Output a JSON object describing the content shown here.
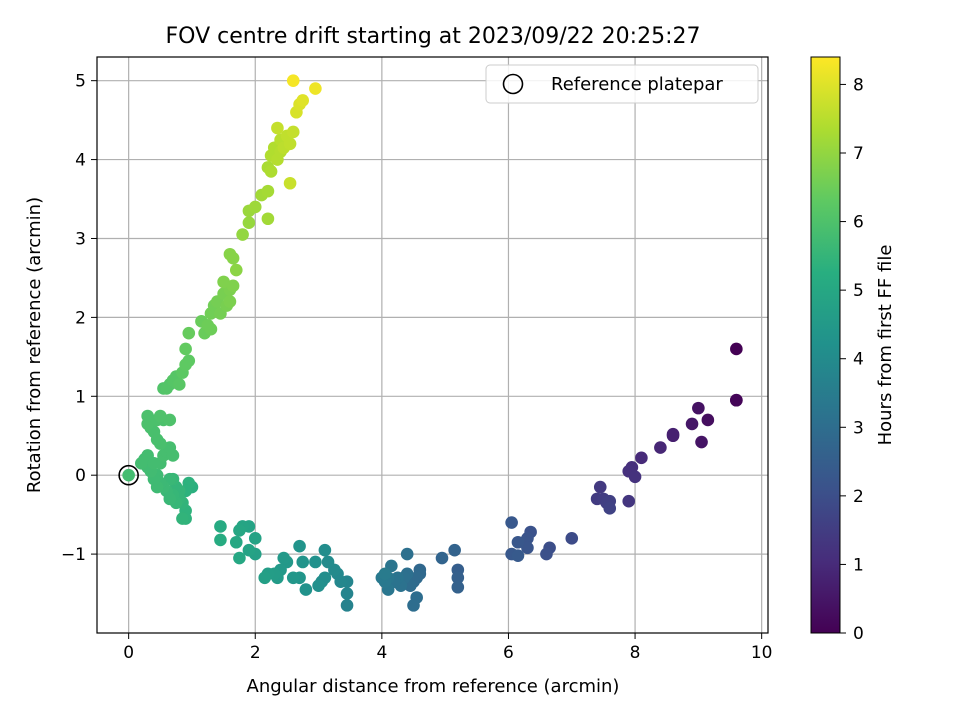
{
  "chart_data": {
    "type": "scatter",
    "title": "FOV centre drift starting at 2023/09/22 20:25:27",
    "xlabel": "Angular distance from reference (arcmin)",
    "ylabel": "Rotation from reference (arcmin)",
    "xlim": [
      -0.5,
      10.1
    ],
    "ylim": [
      -2.0,
      5.3
    ],
    "xticks": [
      0,
      2,
      4,
      6,
      8,
      10
    ],
    "yticks": [
      -1,
      0,
      1,
      2,
      3,
      4,
      5
    ],
    "grid": true,
    "legend": {
      "position": "top-right",
      "entries": [
        "Reference platepar"
      ]
    },
    "colorbar": {
      "label": "Hours from first FF file",
      "range": [
        0,
        8.4
      ],
      "ticks": [
        0,
        1,
        2,
        3,
        4,
        5,
        6,
        7,
        8
      ],
      "colormap": "viridis"
    },
    "reference_point": {
      "x": 0,
      "y": 0
    },
    "points": [
      {
        "x": 9.6,
        "y": 1.6,
        "c": 0.0
      },
      {
        "x": 9.6,
        "y": 0.95,
        "c": 0.05
      },
      {
        "x": 9.6,
        "y": 0.95,
        "c": 0.1
      },
      {
        "x": 9.15,
        "y": 0.7,
        "c": 0.3
      },
      {
        "x": 9.0,
        "y": 0.85,
        "c": 0.4
      },
      {
        "x": 8.9,
        "y": 0.65,
        "c": 0.5
      },
      {
        "x": 9.05,
        "y": 0.42,
        "c": 0.45
      },
      {
        "x": 8.6,
        "y": 0.5,
        "c": 0.7
      },
      {
        "x": 8.6,
        "y": 0.52,
        "c": 0.75
      },
      {
        "x": 8.4,
        "y": 0.35,
        "c": 0.9
      },
      {
        "x": 8.1,
        "y": 0.22,
        "c": 1.0
      },
      {
        "x": 7.95,
        "y": 0.1,
        "c": 1.1
      },
      {
        "x": 7.9,
        "y": 0.05,
        "c": 1.15
      },
      {
        "x": 8.0,
        "y": -0.02,
        "c": 1.2
      },
      {
        "x": 7.9,
        "y": -0.33,
        "c": 1.3
      },
      {
        "x": 7.45,
        "y": -0.15,
        "c": 1.4
      },
      {
        "x": 7.4,
        "y": -0.3,
        "c": 1.45
      },
      {
        "x": 7.5,
        "y": -0.3,
        "c": 1.5
      },
      {
        "x": 7.55,
        "y": -0.35,
        "c": 1.55
      },
      {
        "x": 7.6,
        "y": -0.33,
        "c": 1.6
      },
      {
        "x": 7.6,
        "y": -0.42,
        "c": 1.65
      },
      {
        "x": 7.0,
        "y": -0.8,
        "c": 1.9
      },
      {
        "x": 6.65,
        "y": -0.92,
        "c": 2.0
      },
      {
        "x": 6.6,
        "y": -1.0,
        "c": 2.05
      },
      {
        "x": 6.35,
        "y": -0.72,
        "c": 2.1
      },
      {
        "x": 6.3,
        "y": -0.8,
        "c": 2.15
      },
      {
        "x": 6.25,
        "y": -0.85,
        "c": 2.2
      },
      {
        "x": 6.3,
        "y": -0.92,
        "c": 2.2
      },
      {
        "x": 6.15,
        "y": -0.85,
        "c": 2.25
      },
      {
        "x": 6.05,
        "y": -0.6,
        "c": 2.3
      },
      {
        "x": 6.05,
        "y": -1.0,
        "c": 2.3
      },
      {
        "x": 6.15,
        "y": -1.02,
        "c": 2.35
      },
      {
        "x": 5.2,
        "y": -1.2,
        "c": 2.5
      },
      {
        "x": 5.2,
        "y": -1.3,
        "c": 2.55
      },
      {
        "x": 5.2,
        "y": -1.42,
        "c": 2.6
      },
      {
        "x": 5.15,
        "y": -0.95,
        "c": 2.65
      },
      {
        "x": 4.95,
        "y": -1.05,
        "c": 2.7
      },
      {
        "x": 4.6,
        "y": -1.2,
        "c": 2.8
      },
      {
        "x": 4.6,
        "y": -1.25,
        "c": 2.85
      },
      {
        "x": 4.55,
        "y": -1.3,
        "c": 2.9
      },
      {
        "x": 4.5,
        "y": -1.35,
        "c": 2.9
      },
      {
        "x": 4.45,
        "y": -1.4,
        "c": 2.95
      },
      {
        "x": 4.55,
        "y": -1.55,
        "c": 3.0
      },
      {
        "x": 4.5,
        "y": -1.65,
        "c": 3.0
      },
      {
        "x": 4.4,
        "y": -1.25,
        "c": 3.05
      },
      {
        "x": 4.4,
        "y": -1.0,
        "c": 3.1
      },
      {
        "x": 4.35,
        "y": -1.3,
        "c": 3.1
      },
      {
        "x": 4.3,
        "y": -1.4,
        "c": 3.15
      },
      {
        "x": 4.25,
        "y": -1.3,
        "c": 3.2
      },
      {
        "x": 4.2,
        "y": -1.35,
        "c": 3.2
      },
      {
        "x": 4.15,
        "y": -1.15,
        "c": 3.25
      },
      {
        "x": 4.1,
        "y": -1.3,
        "c": 3.3
      },
      {
        "x": 4.1,
        "y": -1.45,
        "c": 3.3
      },
      {
        "x": 4.05,
        "y": -1.35,
        "c": 3.35
      },
      {
        "x": 4.0,
        "y": -1.3,
        "c": 3.4
      },
      {
        "x": 4.05,
        "y": -1.25,
        "c": 3.45
      },
      {
        "x": 3.45,
        "y": -1.65,
        "c": 3.7
      },
      {
        "x": 3.45,
        "y": -1.5,
        "c": 3.75
      },
      {
        "x": 3.45,
        "y": -1.35,
        "c": 3.8
      },
      {
        "x": 3.35,
        "y": -1.35,
        "c": 3.85
      },
      {
        "x": 3.3,
        "y": -1.25,
        "c": 3.9
      },
      {
        "x": 3.25,
        "y": -1.2,
        "c": 3.95
      },
      {
        "x": 3.15,
        "y": -1.1,
        "c": 4.0
      },
      {
        "x": 3.1,
        "y": -0.95,
        "c": 4.05
      },
      {
        "x": 3.1,
        "y": -1.3,
        "c": 4.1
      },
      {
        "x": 3.05,
        "y": -1.35,
        "c": 4.1
      },
      {
        "x": 3.0,
        "y": -1.4,
        "c": 4.15
      },
      {
        "x": 2.95,
        "y": -1.1,
        "c": 4.2
      },
      {
        "x": 2.8,
        "y": -1.45,
        "c": 4.25
      },
      {
        "x": 2.75,
        "y": -1.1,
        "c": 4.3
      },
      {
        "x": 2.7,
        "y": -0.9,
        "c": 4.3
      },
      {
        "x": 2.7,
        "y": -1.3,
        "c": 4.35
      },
      {
        "x": 2.6,
        "y": -1.3,
        "c": 4.4
      },
      {
        "x": 2.5,
        "y": -1.1,
        "c": 4.45
      },
      {
        "x": 2.45,
        "y": -1.05,
        "c": 4.5
      },
      {
        "x": 2.4,
        "y": -1.2,
        "c": 4.5
      },
      {
        "x": 2.35,
        "y": -1.3,
        "c": 4.55
      },
      {
        "x": 2.3,
        "y": -1.25,
        "c": 4.6
      },
      {
        "x": 2.2,
        "y": -1.25,
        "c": 4.65
      },
      {
        "x": 2.15,
        "y": -1.3,
        "c": 4.7
      },
      {
        "x": 2.0,
        "y": -1.0,
        "c": 4.75
      },
      {
        "x": 2.0,
        "y": -0.8,
        "c": 4.8
      },
      {
        "x": 1.9,
        "y": -0.95,
        "c": 4.85
      },
      {
        "x": 1.9,
        "y": -0.65,
        "c": 4.85
      },
      {
        "x": 1.8,
        "y": -0.65,
        "c": 4.9
      },
      {
        "x": 1.75,
        "y": -0.7,
        "c": 4.95
      },
      {
        "x": 1.7,
        "y": -0.85,
        "c": 5.0
      },
      {
        "x": 1.75,
        "y": -1.05,
        "c": 5.0
      },
      {
        "x": 1.45,
        "y": -0.65,
        "c": 5.1
      },
      {
        "x": 1.45,
        "y": -0.82,
        "c": 5.15
      },
      {
        "x": 1.0,
        "y": -0.15,
        "c": 5.3
      },
      {
        "x": 0.95,
        "y": -0.1,
        "c": 5.35
      },
      {
        "x": 0.9,
        "y": -0.2,
        "c": 5.35
      },
      {
        "x": 0.9,
        "y": -0.45,
        "c": 5.4
      },
      {
        "x": 0.9,
        "y": -0.55,
        "c": 5.4
      },
      {
        "x": 0.85,
        "y": -0.55,
        "c": 5.45
      },
      {
        "x": 0.85,
        "y": -0.35,
        "c": 5.45
      },
      {
        "x": 0.8,
        "y": -0.3,
        "c": 5.5
      },
      {
        "x": 0.8,
        "y": -0.2,
        "c": 5.5
      },
      {
        "x": 0.75,
        "y": -0.15,
        "c": 5.5
      },
      {
        "x": 0.75,
        "y": -0.35,
        "c": 5.55
      },
      {
        "x": 0.7,
        "y": -0.25,
        "c": 5.55
      },
      {
        "x": 0.7,
        "y": -0.05,
        "c": 5.55
      },
      {
        "x": 0.65,
        "y": -0.3,
        "c": 5.6
      },
      {
        "x": 0.65,
        "y": -0.05,
        "c": 5.6
      },
      {
        "x": 0.6,
        "y": -0.2,
        "c": 5.6
      },
      {
        "x": 0.55,
        "y": -0.15,
        "c": 5.65
      },
      {
        "x": 0.5,
        "y": -0.1,
        "c": 5.65
      },
      {
        "x": 0.45,
        "y": -0.15,
        "c": 5.7
      },
      {
        "x": 0.45,
        "y": 0.0,
        "c": 5.7
      },
      {
        "x": 0.4,
        "y": -0.05,
        "c": 5.7
      },
      {
        "x": 0.35,
        "y": 0.05,
        "c": 5.75
      },
      {
        "x": 0.3,
        "y": 0.1,
        "c": 5.75
      },
      {
        "x": 0.25,
        "y": 0.2,
        "c": 5.75
      },
      {
        "x": 0.3,
        "y": 0.25,
        "c": 5.8
      },
      {
        "x": 0.2,
        "y": 0.15,
        "c": 5.8
      },
      {
        "x": 0.4,
        "y": 0.15,
        "c": 5.8
      },
      {
        "x": 0.5,
        "y": 0.15,
        "c": 5.8
      },
      {
        "x": 0.55,
        "y": 0.25,
        "c": 5.85
      },
      {
        "x": 0.6,
        "y": 0.3,
        "c": 5.85
      },
      {
        "x": 0.7,
        "y": 0.25,
        "c": 5.85
      },
      {
        "x": 0.65,
        "y": 0.35,
        "c": 5.85
      },
      {
        "x": 0.5,
        "y": 0.4,
        "c": 5.9
      },
      {
        "x": 0.45,
        "y": 0.45,
        "c": 5.9
      },
      {
        "x": 0.4,
        "y": 0.55,
        "c": 5.9
      },
      {
        "x": 0.35,
        "y": 0.6,
        "c": 5.9
      },
      {
        "x": 0.3,
        "y": 0.65,
        "c": 5.95
      },
      {
        "x": 0.3,
        "y": 0.75,
        "c": 5.95
      },
      {
        "x": 0.45,
        "y": 0.7,
        "c": 5.95
      },
      {
        "x": 0.55,
        "y": 0.7,
        "c": 5.95
      },
      {
        "x": 0.65,
        "y": 0.7,
        "c": 6.0
      },
      {
        "x": 0.5,
        "y": 0.75,
        "c": 6.0
      },
      {
        "x": 0.55,
        "y": 1.1,
        "c": 6.05
      },
      {
        "x": 0.6,
        "y": 1.1,
        "c": 6.1
      },
      {
        "x": 0.65,
        "y": 1.15,
        "c": 6.1
      },
      {
        "x": 0.7,
        "y": 1.2,
        "c": 6.15
      },
      {
        "x": 0.75,
        "y": 1.25,
        "c": 6.15
      },
      {
        "x": 0.8,
        "y": 1.15,
        "c": 6.2
      },
      {
        "x": 0.85,
        "y": 1.3,
        "c": 6.25
      },
      {
        "x": 0.9,
        "y": 1.4,
        "c": 6.3
      },
      {
        "x": 0.95,
        "y": 1.45,
        "c": 6.3
      },
      {
        "x": 0.9,
        "y": 1.6,
        "c": 6.35
      },
      {
        "x": 0.95,
        "y": 1.8,
        "c": 6.4
      },
      {
        "x": 1.2,
        "y": 1.8,
        "c": 6.45
      },
      {
        "x": 1.15,
        "y": 1.95,
        "c": 6.45
      },
      {
        "x": 1.25,
        "y": 1.9,
        "c": 6.5
      },
      {
        "x": 1.3,
        "y": 1.85,
        "c": 6.5
      },
      {
        "x": 1.3,
        "y": 2.05,
        "c": 6.55
      },
      {
        "x": 1.35,
        "y": 2.15,
        "c": 6.55
      },
      {
        "x": 1.4,
        "y": 2.2,
        "c": 6.6
      },
      {
        "x": 1.45,
        "y": 2.05,
        "c": 6.6
      },
      {
        "x": 1.5,
        "y": 2.3,
        "c": 6.65
      },
      {
        "x": 1.55,
        "y": 2.15,
        "c": 6.65
      },
      {
        "x": 1.6,
        "y": 2.35,
        "c": 6.7
      },
      {
        "x": 1.6,
        "y": 2.2,
        "c": 6.7
      },
      {
        "x": 1.65,
        "y": 2.4,
        "c": 6.75
      },
      {
        "x": 1.5,
        "y": 2.45,
        "c": 6.75
      },
      {
        "x": 1.6,
        "y": 2.8,
        "c": 6.85
      },
      {
        "x": 1.65,
        "y": 2.75,
        "c": 6.85
      },
      {
        "x": 1.7,
        "y": 2.6,
        "c": 6.9
      },
      {
        "x": 1.8,
        "y": 3.05,
        "c": 7.0
      },
      {
        "x": 1.9,
        "y": 3.2,
        "c": 7.05
      },
      {
        "x": 1.9,
        "y": 3.35,
        "c": 7.1
      },
      {
        "x": 2.0,
        "y": 3.4,
        "c": 7.15
      },
      {
        "x": 2.1,
        "y": 3.55,
        "c": 7.2
      },
      {
        "x": 2.2,
        "y": 3.25,
        "c": 7.2
      },
      {
        "x": 2.2,
        "y": 3.6,
        "c": 7.25
      },
      {
        "x": 2.2,
        "y": 3.9,
        "c": 7.3
      },
      {
        "x": 2.25,
        "y": 3.85,
        "c": 7.35
      },
      {
        "x": 2.25,
        "y": 4.05,
        "c": 7.4
      },
      {
        "x": 2.3,
        "y": 4.15,
        "c": 7.4
      },
      {
        "x": 2.35,
        "y": 4.0,
        "c": 7.45
      },
      {
        "x": 2.4,
        "y": 4.1,
        "c": 7.45
      },
      {
        "x": 2.4,
        "y": 4.25,
        "c": 7.5
      },
      {
        "x": 2.45,
        "y": 4.15,
        "c": 7.55
      },
      {
        "x": 2.5,
        "y": 4.3,
        "c": 7.6
      },
      {
        "x": 2.55,
        "y": 4.2,
        "c": 7.6
      },
      {
        "x": 2.6,
        "y": 4.35,
        "c": 7.65
      },
      {
        "x": 2.35,
        "y": 4.4,
        "c": 7.65
      },
      {
        "x": 2.55,
        "y": 3.7,
        "c": 7.7
      },
      {
        "x": 2.65,
        "y": 4.6,
        "c": 7.9
      },
      {
        "x": 2.7,
        "y": 4.7,
        "c": 7.95
      },
      {
        "x": 2.75,
        "y": 4.75,
        "c": 8.0
      },
      {
        "x": 2.95,
        "y": 4.9,
        "c": 8.2
      },
      {
        "x": 2.6,
        "y": 5.0,
        "c": 8.3
      }
    ]
  }
}
